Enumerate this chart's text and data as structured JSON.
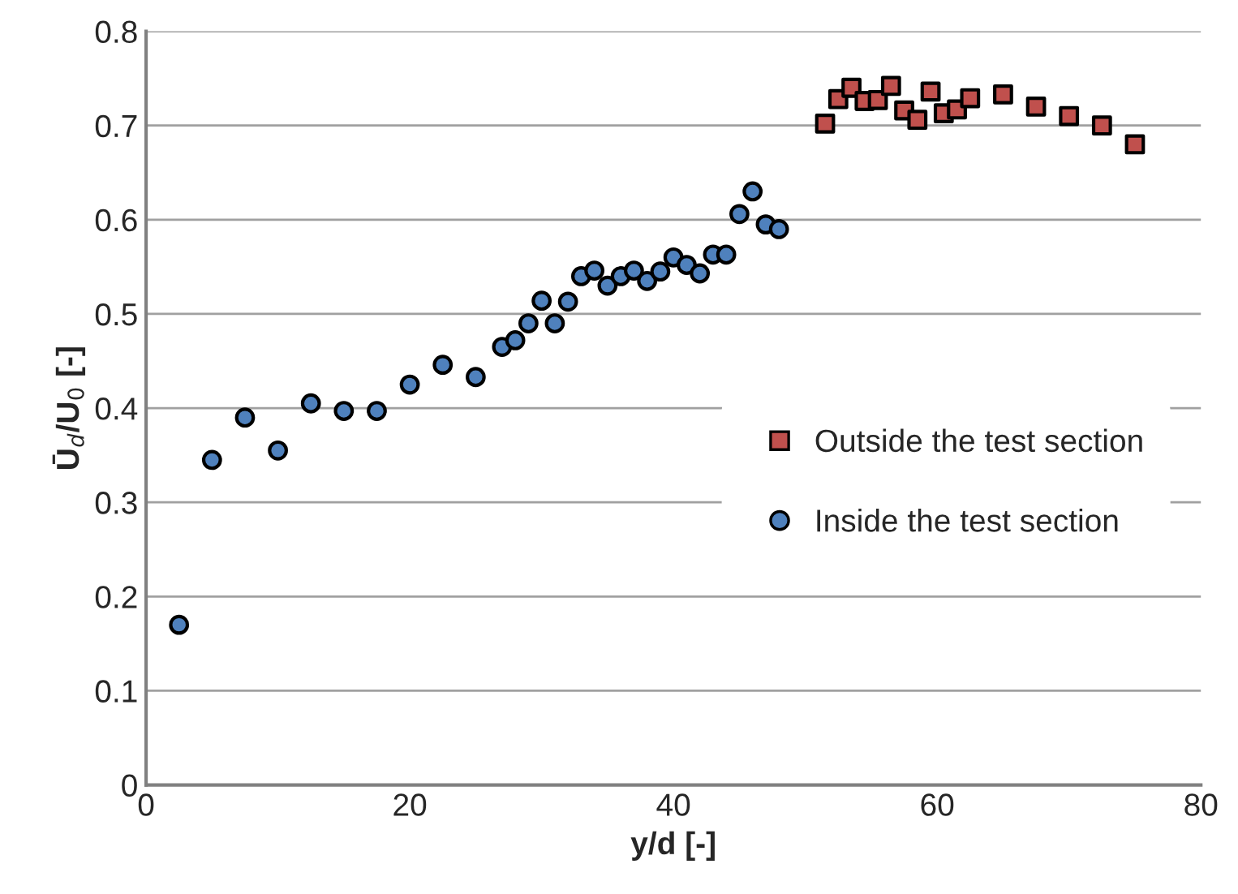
{
  "chart_data": {
    "type": "scatter",
    "xlabel": "y/d [-]",
    "ylabel": "Ū$_{d}$/U$_{0}$ [-]",
    "xlim": [
      0,
      80
    ],
    "xticks": [
      0,
      20,
      40,
      60,
      80
    ],
    "ylim": [
      0,
      0.8
    ],
    "yticks": [
      0,
      0.1,
      0.2,
      0.3,
      0.4,
      0.5,
      0.6,
      0.7,
      0.8
    ],
    "grid": "y",
    "legend": "right",
    "series": [
      {
        "name": "Outside the test section",
        "color": "#c0504d",
        "marker": "square",
        "x": [
          51.5,
          52.5,
          53.5,
          54.5,
          55.5,
          56.5,
          57.5,
          58.5,
          59.5,
          60.5,
          61.5,
          62.5,
          65,
          67.5,
          70,
          72.5,
          75
        ],
        "values": [
          0.702,
          0.728,
          0.74,
          0.726,
          0.727,
          0.742,
          0.716,
          0.706,
          0.736,
          0.713,
          0.717,
          0.729,
          0.733,
          0.72,
          0.71,
          0.7,
          0.68
        ]
      },
      {
        "name": "Inside the test section",
        "color": "#4f81bd",
        "marker": "circle",
        "x": [
          2.5,
          5,
          7.5,
          10,
          12.5,
          15,
          17.5,
          20,
          22.5,
          25,
          27,
          28,
          29,
          30,
          31,
          32,
          33,
          34,
          35,
          36,
          37,
          38,
          39,
          40,
          41,
          42,
          43,
          44,
          45,
          46,
          47,
          48
        ],
        "values": [
          0.17,
          0.345,
          0.39,
          0.355,
          0.405,
          0.397,
          0.397,
          0.425,
          0.446,
          0.433,
          0.465,
          0.472,
          0.49,
          0.514,
          0.49,
          0.513,
          0.54,
          0.546,
          0.53,
          0.54,
          0.546,
          0.535,
          0.545,
          0.56,
          0.552,
          0.543,
          0.563,
          0.563,
          0.606,
          0.63,
          0.595,
          0.59
        ]
      }
    ]
  }
}
